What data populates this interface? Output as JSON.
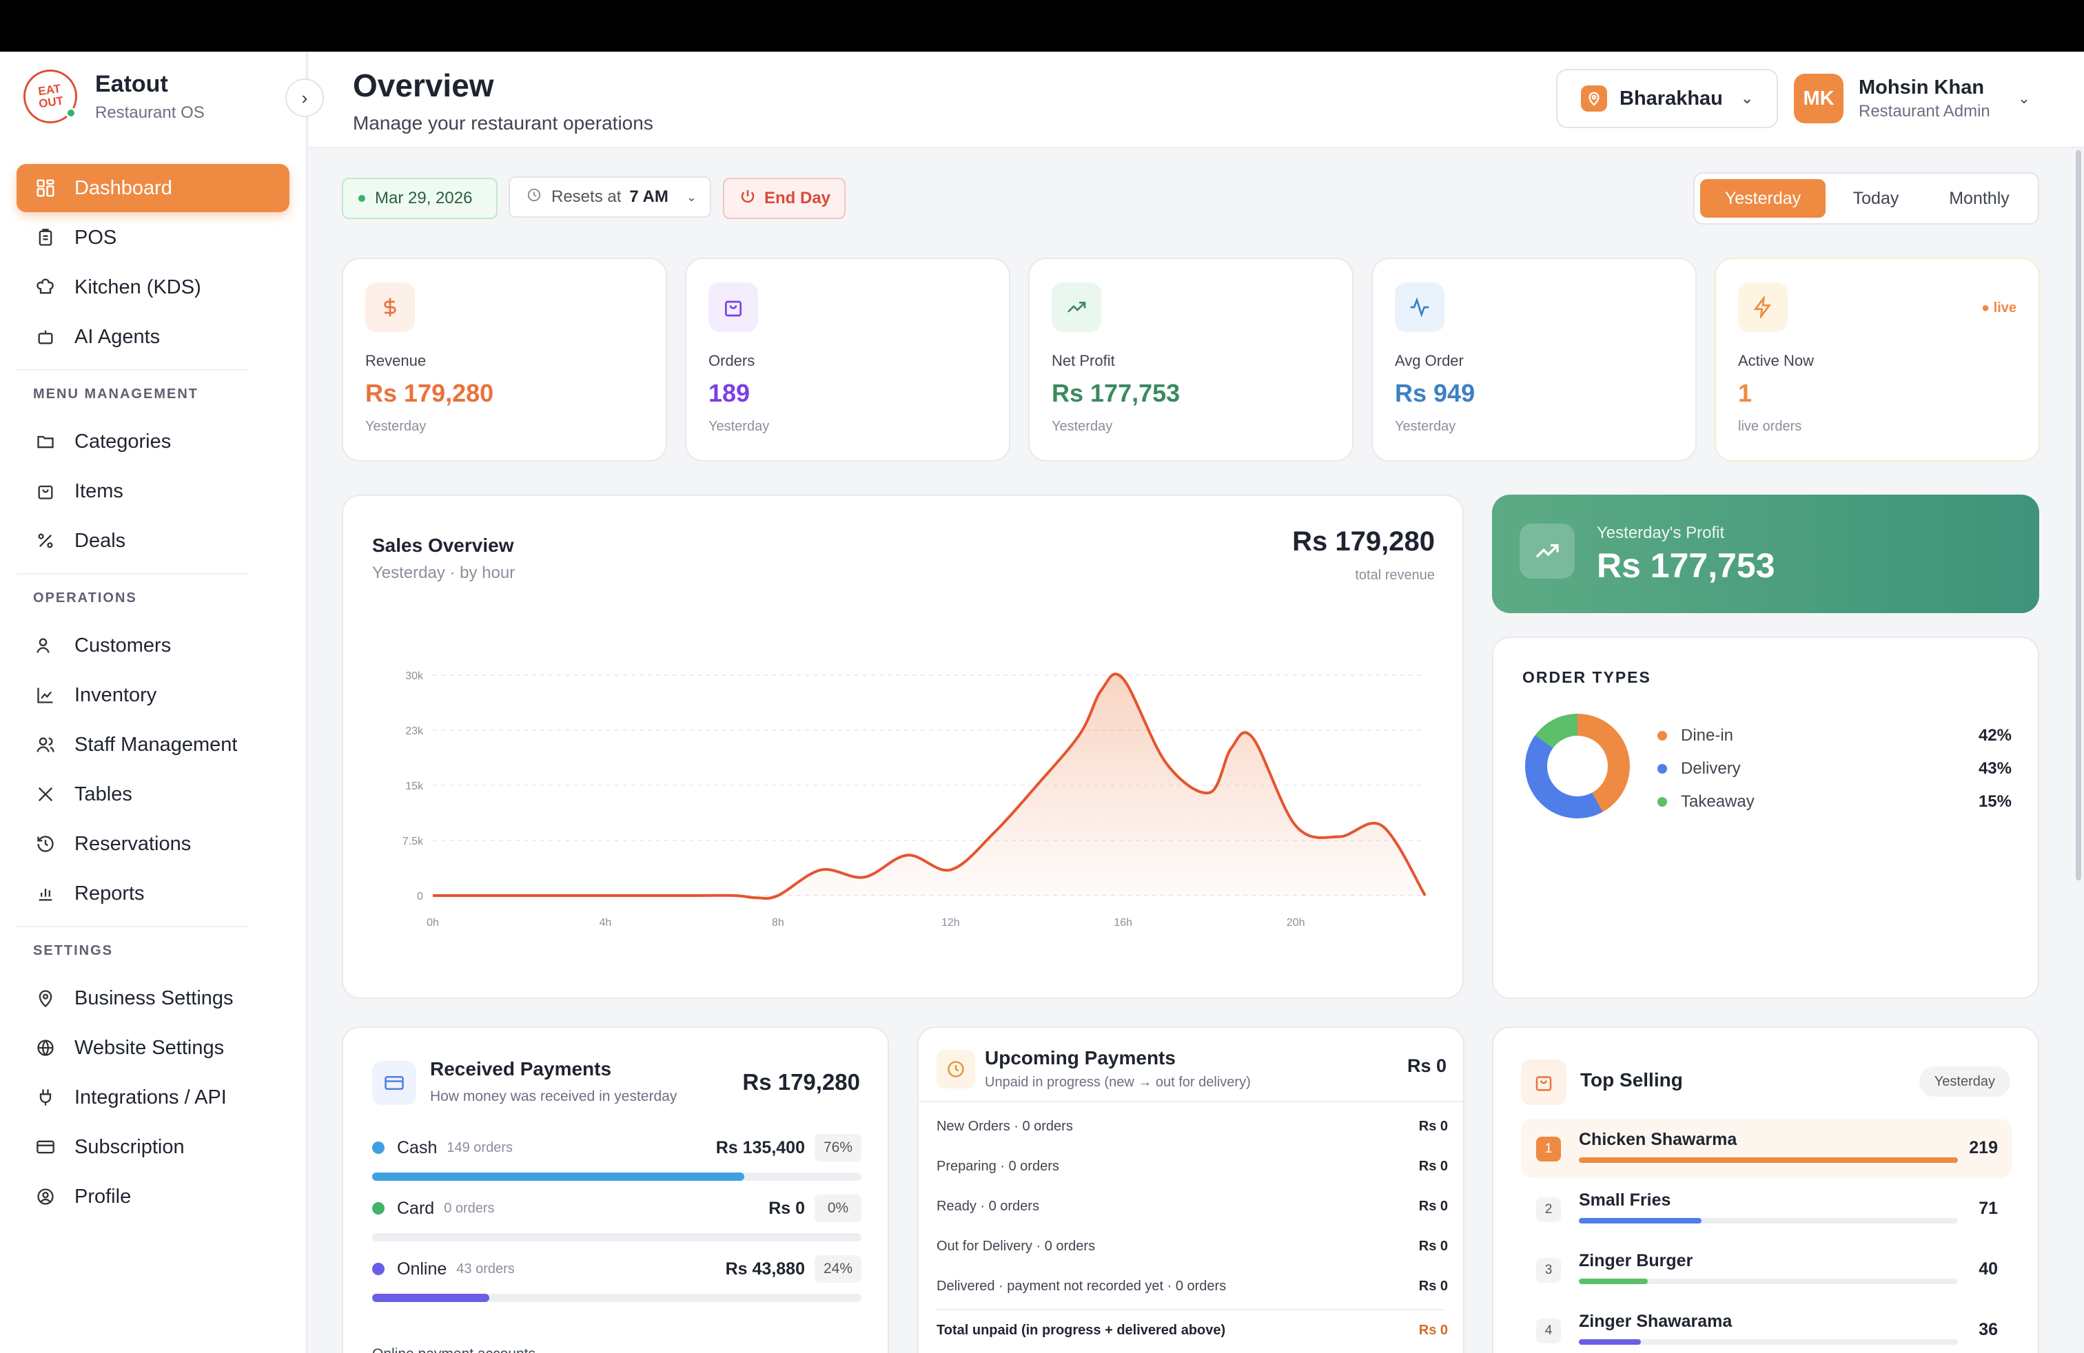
{
  "brand": {
    "name": "Eatout",
    "subtitle": "Restaurant OS",
    "logo_text": "EAT OUT"
  },
  "colors": {
    "accent": "#ef8a43",
    "profit": "#3e9379",
    "revenue": "#e8733c",
    "orders": "#7b3fe4",
    "net": "#3a8a5f",
    "avg": "#3c80c2"
  },
  "sidebar": {
    "main": [
      {
        "label": "Dashboard",
        "icon": "grid-icon",
        "active": true
      },
      {
        "label": "POS",
        "icon": "clipboard-icon"
      },
      {
        "label": "Kitchen (KDS)",
        "icon": "chef-hat-icon"
      },
      {
        "label": "AI Agents",
        "icon": "robot-icon"
      }
    ],
    "menu_title": "MENU MANAGEMENT",
    "menu": [
      {
        "label": "Categories",
        "icon": "folder-icon"
      },
      {
        "label": "Items",
        "icon": "bag-icon"
      },
      {
        "label": "Deals",
        "icon": "percent-icon"
      }
    ],
    "ops_title": "OPERATIONS",
    "ops": [
      {
        "label": "Customers",
        "icon": "user-icon"
      },
      {
        "label": "Inventory",
        "icon": "chart-icon"
      },
      {
        "label": "Staff Management",
        "icon": "users-icon"
      },
      {
        "label": "Tables",
        "icon": "utensils-icon"
      },
      {
        "label": "Reservations",
        "icon": "history-icon"
      },
      {
        "label": "Reports",
        "icon": "bar-chart-icon"
      }
    ],
    "settings_title": "SETTINGS",
    "settings": [
      {
        "label": "Business Settings",
        "icon": "location-icon"
      },
      {
        "label": "Website Settings",
        "icon": "globe-icon"
      },
      {
        "label": "Integrations / API",
        "icon": "plug-icon"
      },
      {
        "label": "Subscription",
        "icon": "card-icon"
      },
      {
        "label": "Profile",
        "icon": "profile-icon"
      }
    ]
  },
  "header": {
    "title": "Overview",
    "subtitle": "Manage your restaurant operations",
    "branch": "Bharakhau",
    "user_initials": "MK",
    "user_name": "Mohsin Khan",
    "user_role": "Restaurant Admin"
  },
  "filters": {
    "date": "Mar 29, 2026",
    "resets_label": "Resets at",
    "resets_time": "7 AM",
    "end_day": "End Day",
    "periods": [
      "Yesterday",
      "Today",
      "Monthly"
    ],
    "active_period": "Yesterday"
  },
  "stats": [
    {
      "label": "Revenue",
      "value": "Rs 179,280",
      "sub": "Yesterday",
      "icon": "dollar-icon"
    },
    {
      "label": "Orders",
      "value": "189",
      "sub": "Yesterday",
      "icon": "bag-icon"
    },
    {
      "label": "Net Profit",
      "value": "Rs 177,753",
      "sub": "Yesterday",
      "icon": "trend-up-icon"
    },
    {
      "label": "Avg Order",
      "value": "Rs 949",
      "sub": "Yesterday",
      "icon": "pulse-icon"
    },
    {
      "label": "Active Now",
      "value": "1",
      "sub": "live orders",
      "icon": "bolt-icon",
      "badge": "live"
    }
  ],
  "sales": {
    "title": "Sales Overview",
    "subtitle": "Yesterday · by hour",
    "total": "Rs 179,280",
    "total_label": "total revenue"
  },
  "chart_data": {
    "type": "area",
    "title": "Sales Overview",
    "x_ticks": [
      "0h",
      "4h",
      "8h",
      "12h",
      "16h",
      "20h"
    ],
    "y_ticks": [
      "0",
      "7.5k",
      "15k",
      "23k",
      "30k"
    ],
    "ylim": [
      0,
      30000
    ],
    "xlim": [
      0,
      23
    ],
    "x": [
      0,
      1,
      2,
      3,
      4,
      5,
      6,
      7,
      7.5,
      8,
      9,
      10,
      11,
      12,
      13,
      14,
      15,
      15.5,
      16,
      17,
      18,
      18.5,
      19,
      20,
      21,
      22,
      23
    ],
    "y": [
      0,
      0,
      0,
      0,
      0,
      0,
      0,
      0,
      -300,
      0,
      3500,
      2500,
      5500,
      3500,
      8500,
      15000,
      22000,
      28000,
      29500,
      18000,
      14000,
      20000,
      21500,
      9500,
      8000,
      9500,
      0
    ],
    "grid": true
  },
  "profit": {
    "label": "Yesterday's Profit",
    "value": "Rs 177,753"
  },
  "order_types": {
    "title": "ORDER TYPES",
    "items": [
      {
        "label": "Dine-in",
        "pct": "42%",
        "value": 42,
        "color": "#ef8a43"
      },
      {
        "label": "Delivery",
        "pct": "43%",
        "value": 43,
        "color": "#4f7ee8"
      },
      {
        "label": "Takeaway",
        "pct": "15%",
        "value": 15,
        "color": "#5cbf6a"
      }
    ]
  },
  "received": {
    "title": "Received Payments",
    "subtitle": "How money was received in yesterday",
    "total": "Rs 179,280",
    "rows": [
      {
        "name": "Cash",
        "count": "149 orders",
        "amount": "Rs 135,400",
        "pct": "76%",
        "value": 76,
        "color": "#3fa0e0"
      },
      {
        "name": "Card",
        "count": "0 orders",
        "amount": "Rs 0",
        "pct": "0%",
        "value": 0,
        "color": "#43b26a"
      },
      {
        "name": "Online",
        "count": "43 orders",
        "amount": "Rs 43,880",
        "pct": "24%",
        "value": 24,
        "color": "#6a5ee8"
      }
    ],
    "footer": "Online payment accounts"
  },
  "upcoming": {
    "title": "Upcoming Payments",
    "subtitle": "Unpaid in progress (new → out for delivery)",
    "total": "Rs 0",
    "rows": [
      {
        "label": "New Orders · 0 orders",
        "amount": "Rs 0"
      },
      {
        "label": "Preparing · 0 orders",
        "amount": "Rs 0"
      },
      {
        "label": "Ready · 0 orders",
        "amount": "Rs 0"
      },
      {
        "label": "Out for Delivery · 0 orders",
        "amount": "Rs 0"
      },
      {
        "label": "Delivered · payment not recorded yet · 0 orders",
        "amount": "Rs 0"
      }
    ],
    "total_label": "Total unpaid (in progress + delivered above)",
    "total_amount": "Rs 0"
  },
  "top_selling": {
    "title": "Top Selling",
    "badge": "Yesterday",
    "items": [
      {
        "rank": "1",
        "name": "Chicken Shawarma",
        "qty": "219",
        "value": 219,
        "color": "#ef8a43"
      },
      {
        "rank": "2",
        "name": "Small Fries",
        "qty": "71",
        "value": 71,
        "color": "#4f7ee8"
      },
      {
        "rank": "3",
        "name": "Zinger Burger",
        "qty": "40",
        "value": 40,
        "color": "#5cbf6a"
      },
      {
        "rank": "4",
        "name": "Zinger Shawarama",
        "qty": "36",
        "value": 36,
        "color": "#6a5ee8"
      }
    ]
  }
}
